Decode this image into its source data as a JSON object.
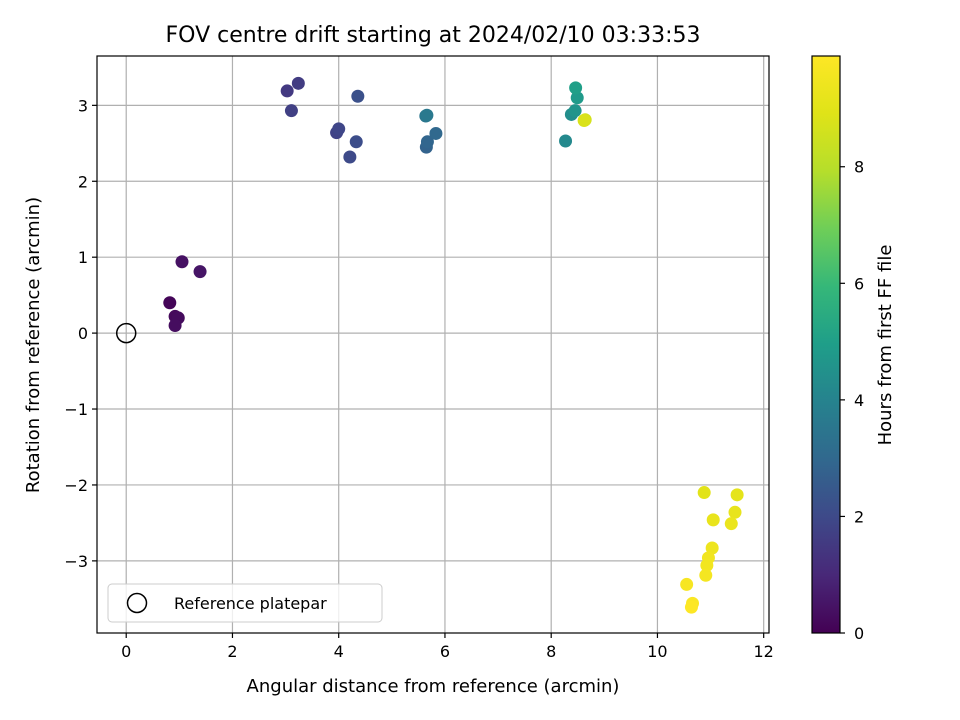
{
  "chart_data": {
    "type": "scatter",
    "title": "FOV centre drift starting at 2024/02/10 03:33:53",
    "xlabel": "Angular distance from reference (arcmin)",
    "ylabel": "Rotation from reference (arcmin)",
    "xlim": [
      -0.55,
      12.1
    ],
    "ylim": [
      -3.95,
      3.65
    ],
    "xticks": [
      0,
      2,
      4,
      6,
      8,
      10,
      12
    ],
    "yticks": [
      -3,
      -2,
      -1,
      0,
      1,
      2,
      3
    ],
    "xtick_labels": [
      "0",
      "2",
      "4",
      "6",
      "8",
      "10",
      "12"
    ],
    "ytick_labels": [
      "−3",
      "−2",
      "−1",
      "0",
      "1",
      "2",
      "3"
    ],
    "grid": true,
    "legend": {
      "placement": "lower-left",
      "entries": [
        "Reference platepar"
      ]
    },
    "reference_point": {
      "x": 0,
      "y": 0
    },
    "colorbar": {
      "label": "Hours from first FF file",
      "colormap": "viridis",
      "range": [
        0,
        9.9
      ],
      "ticks": [
        0,
        2,
        4,
        6,
        8
      ],
      "tick_labels": [
        "0",
        "2",
        "4",
        "6",
        "8"
      ]
    },
    "points": [
      {
        "x": 0.82,
        "y": 0.4,
        "h": 0.1
      },
      {
        "x": 0.92,
        "y": 0.22,
        "h": 0.2
      },
      {
        "x": 0.98,
        "y": 0.2,
        "h": 0.25
      },
      {
        "x": 0.92,
        "y": 0.1,
        "h": 0.3
      },
      {
        "x": 1.05,
        "y": 0.94,
        "h": 0.4
      },
      {
        "x": 1.39,
        "y": 0.81,
        "h": 0.5
      },
      {
        "x": 3.03,
        "y": 3.19,
        "h": 1.5
      },
      {
        "x": 3.24,
        "y": 3.29,
        "h": 1.6
      },
      {
        "x": 3.11,
        "y": 2.93,
        "h": 1.7
      },
      {
        "x": 3.96,
        "y": 2.64,
        "h": 1.8
      },
      {
        "x": 4.0,
        "y": 2.69,
        "h": 1.9
      },
      {
        "x": 4.21,
        "y": 2.32,
        "h": 2.0
      },
      {
        "x": 4.33,
        "y": 2.52,
        "h": 2.1
      },
      {
        "x": 4.36,
        "y": 3.12,
        "h": 2.2
      },
      {
        "x": 5.65,
        "y": 2.45,
        "h": 2.8
      },
      {
        "x": 5.67,
        "y": 2.52,
        "h": 2.9
      },
      {
        "x": 5.83,
        "y": 2.63,
        "h": 3.0
      },
      {
        "x": 5.64,
        "y": 2.86,
        "h": 3.5
      },
      {
        "x": 5.66,
        "y": 2.87,
        "h": 3.6
      },
      {
        "x": 8.27,
        "y": 2.53,
        "h": 4.2
      },
      {
        "x": 8.38,
        "y": 2.88,
        "h": 4.4
      },
      {
        "x": 8.45,
        "y": 2.93,
        "h": 4.6
      },
      {
        "x": 8.49,
        "y": 3.1,
        "h": 4.8
      },
      {
        "x": 8.46,
        "y": 3.23,
        "h": 5.0
      },
      {
        "x": 8.64,
        "y": 2.81,
        "h": 8.6
      },
      {
        "x": 8.62,
        "y": 2.8,
        "h": 8.8
      },
      {
        "x": 10.88,
        "y": -2.1,
        "h": 9.0
      },
      {
        "x": 11.5,
        "y": -2.13,
        "h": 9.1
      },
      {
        "x": 11.46,
        "y": -2.36,
        "h": 9.2
      },
      {
        "x": 11.05,
        "y": -2.46,
        "h": 9.25
      },
      {
        "x": 11.39,
        "y": -2.51,
        "h": 9.3
      },
      {
        "x": 11.03,
        "y": -2.83,
        "h": 9.4
      },
      {
        "x": 10.96,
        "y": -2.96,
        "h": 9.5
      },
      {
        "x": 10.93,
        "y": -3.06,
        "h": 9.55
      },
      {
        "x": 10.91,
        "y": -3.19,
        "h": 9.6
      },
      {
        "x": 10.55,
        "y": -3.31,
        "h": 9.7
      },
      {
        "x": 10.66,
        "y": -3.56,
        "h": 9.8
      },
      {
        "x": 10.64,
        "y": -3.61,
        "h": 9.9
      }
    ]
  }
}
